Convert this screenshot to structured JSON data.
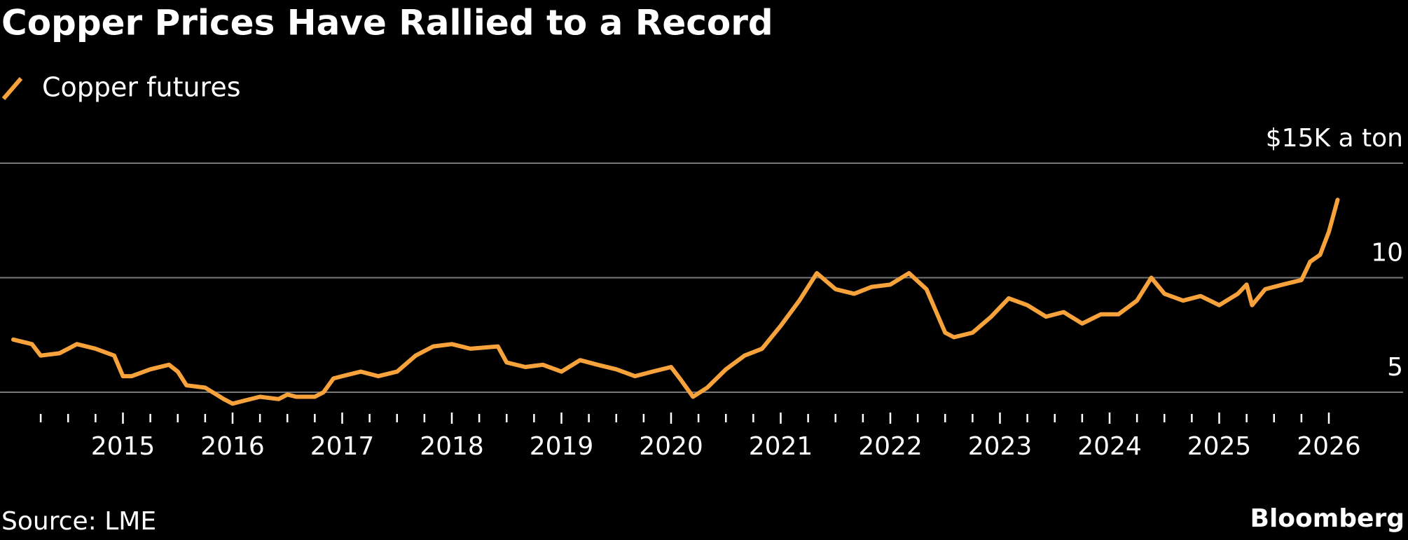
{
  "chart_data": {
    "type": "line",
    "title": "Copper Prices Have Rallied to a Record",
    "source": "Source: LME",
    "brand": "Bloomberg",
    "series": [
      {
        "name": "Copper futures",
        "color": "#f7a23b",
        "x": [
          2014.0,
          2014.17,
          2014.25,
          2014.42,
          2014.5,
          2014.58,
          2014.75,
          2014.92,
          2015.0,
          2015.08,
          2015.25,
          2015.42,
          2015.5,
          2015.58,
          2015.75,
          2015.92,
          2016.0,
          2016.08,
          2016.25,
          2016.42,
          2016.5,
          2016.58,
          2016.75,
          2016.83,
          2016.92,
          2017.0,
          2017.17,
          2017.33,
          2017.5,
          2017.67,
          2017.83,
          2018.0,
          2018.17,
          2018.42,
          2018.5,
          2018.67,
          2018.83,
          2019.0,
          2019.17,
          2019.33,
          2019.5,
          2019.67,
          2019.83,
          2020.0,
          2020.08,
          2020.2,
          2020.33,
          2020.5,
          2020.67,
          2020.83,
          2021.0,
          2021.17,
          2021.33,
          2021.5,
          2021.67,
          2021.83,
          2022.0,
          2022.17,
          2022.33,
          2022.5,
          2022.58,
          2022.75,
          2022.92,
          2023.08,
          2023.25,
          2023.42,
          2023.58,
          2023.75,
          2023.92,
          2024.08,
          2024.25,
          2024.38,
          2024.5,
          2024.67,
          2024.83,
          2025.0,
          2025.17,
          2025.25,
          2025.3,
          2025.42,
          2025.58,
          2025.75,
          2025.83,
          2025.92,
          2026.0,
          2026.08
        ],
        "values": [
          7.3,
          7.1,
          6.6,
          6.7,
          6.9,
          7.1,
          6.9,
          6.6,
          5.7,
          5.7,
          6.0,
          6.2,
          5.9,
          5.3,
          5.2,
          4.7,
          4.5,
          4.6,
          4.8,
          4.7,
          4.9,
          4.8,
          4.8,
          5.0,
          5.6,
          5.7,
          5.9,
          5.7,
          5.9,
          6.6,
          7.0,
          7.1,
          6.9,
          7.0,
          6.3,
          6.1,
          6.2,
          5.9,
          6.4,
          6.2,
          6.0,
          5.7,
          5.9,
          6.1,
          5.6,
          4.8,
          5.2,
          6.0,
          6.6,
          6.9,
          7.9,
          9.0,
          10.2,
          9.5,
          9.3,
          9.6,
          9.7,
          10.2,
          9.5,
          7.6,
          7.4,
          7.6,
          8.3,
          9.1,
          8.8,
          8.3,
          8.5,
          8.0,
          8.4,
          8.4,
          9.0,
          10.0,
          9.3,
          9.0,
          9.2,
          8.8,
          9.3,
          9.7,
          8.8,
          9.5,
          9.7,
          9.9,
          10.7,
          11.0,
          12.0,
          13.4
        ]
      }
    ],
    "xlim": [
      2014.0,
      2026.3
    ],
    "xticks": [
      2015,
      2016,
      2017,
      2018,
      2019,
      2020,
      2021,
      2022,
      2023,
      2024,
      2025,
      2026
    ],
    "minor_xticks": [
      2014.25,
      2014.5,
      2014.75,
      2015.25,
      2015.5,
      2015.75,
      2016.25,
      2016.5,
      2016.75,
      2017.25,
      2017.5,
      2017.75,
      2018.25,
      2018.5,
      2018.75,
      2019.25,
      2019.5,
      2019.75,
      2020.25,
      2020.5,
      2020.75,
      2021.25,
      2021.5,
      2021.75,
      2022.25,
      2022.5,
      2022.75,
      2023.25,
      2023.5,
      2023.75,
      2024.25,
      2024.5,
      2024.75,
      2025.25,
      2025.5,
      2025.75
    ],
    "ylim": [
      4,
      15
    ],
    "yticks": [
      5,
      10,
      {
        "value": 15,
        "label": "$15K a ton"
      }
    ],
    "grid": true
  }
}
